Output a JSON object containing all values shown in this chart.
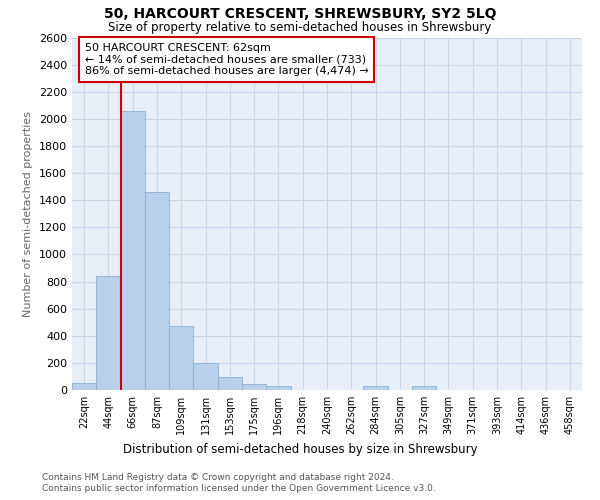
{
  "title": "50, HARCOURT CRESCENT, SHREWSBURY, SY2 5LQ",
  "subtitle": "Size of property relative to semi-detached houses in Shrewsbury",
  "xlabel": "Distribution of semi-detached houses by size in Shrewsbury",
  "ylabel": "Number of semi-detached properties",
  "footer_line1": "Contains HM Land Registry data © Crown copyright and database right 2024.",
  "footer_line2": "Contains public sector information licensed under the Open Government Licence v3.0.",
  "bar_labels": [
    "22sqm",
    "44sqm",
    "66sqm",
    "87sqm",
    "109sqm",
    "131sqm",
    "153sqm",
    "175sqm",
    "196sqm",
    "218sqm",
    "240sqm",
    "262sqm",
    "284sqm",
    "305sqm",
    "327sqm",
    "349sqm",
    "371sqm",
    "393sqm",
    "414sqm",
    "436sqm",
    "458sqm"
  ],
  "bar_values": [
    50,
    840,
    2060,
    1460,
    470,
    200,
    95,
    45,
    28,
    0,
    0,
    0,
    28,
    0,
    28,
    0,
    0,
    0,
    0,
    0,
    0
  ],
  "bar_color": "#b8d0ea",
  "bar_edge_color": "#8ab0d4",
  "vline_bin_index": 2,
  "annotation_title": "50 HARCOURT CRESCENT: 62sqm",
  "annotation_line1": "← 14% of semi-detached houses are smaller (733)",
  "annotation_line2": "86% of semi-detached houses are larger (4,474) →",
  "vline_color": "#cc0000",
  "annotation_box_color": "#cc0000",
  "ylim": [
    0,
    2600
  ],
  "yticks": [
    0,
    200,
    400,
    600,
    800,
    1000,
    1200,
    1400,
    1600,
    1800,
    2000,
    2200,
    2400,
    2600
  ],
  "grid_color": "#c8d4e8",
  "background_color": "#e8eef8"
}
